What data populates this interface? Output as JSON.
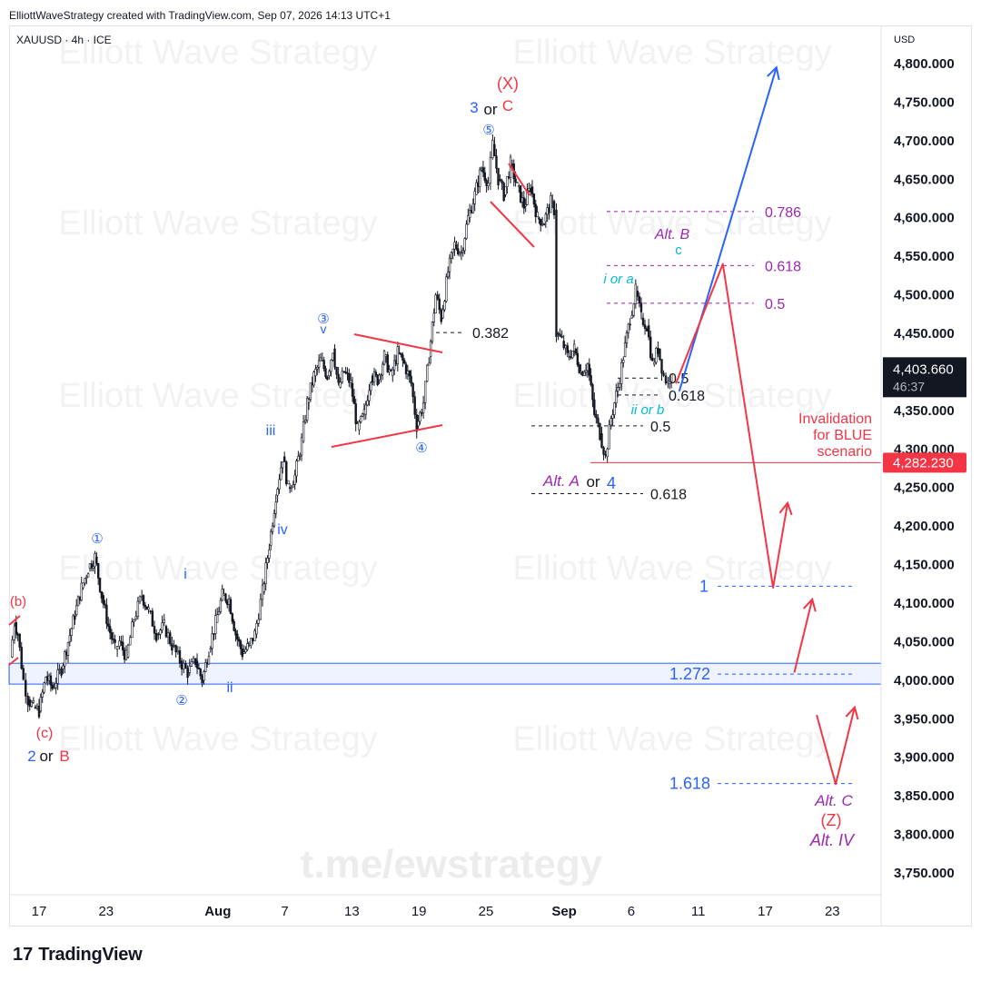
{
  "header": {
    "text": "ElliottWaveStrategy created with TradingView.com, Sep 07, 2026 14:13 UTC+1"
  },
  "symbol": {
    "text": "XAUUSD · 4h · ICE"
  },
  "currency": "USD",
  "footer": {
    "logo": "17",
    "brand": "TradingView"
  },
  "watermarks": [
    "Elliott Wave Strategy",
    "t.me/ewstrategy"
  ],
  "colors": {
    "up": "#ffffff",
    "down": "#131722",
    "blue": "#2962ff",
    "red": "#f23645",
    "purple": "#9c27b0",
    "cyan": "#00bcd4",
    "black": "#131722"
  },
  "chart_data": {
    "type": "candlestick",
    "symbol": "XAUUSD",
    "timeframe": "4h",
    "ylim": [
      3720,
      4830
    ],
    "y_ticks": [
      4800,
      4750,
      4700,
      4650,
      4600,
      4550,
      4500,
      4450,
      4400,
      4350,
      4300,
      4250,
      4200,
      4150,
      4100,
      4050,
      4000,
      3950,
      3900,
      3850,
      3800,
      3750
    ],
    "y_tick_labels": [
      "4,800.000",
      "4,750.000",
      "4,700.000",
      "4,650.000",
      "4,600.000",
      "4,550.000",
      "4,500.000",
      "4,450.000",
      "4,400.000",
      "4,350.000",
      "4,300.000",
      "4,250.000",
      "4,200.000",
      "4,150.000",
      "4,100.000",
      "4,050.000",
      "4,000.000",
      "3,950.000",
      "3,900.000",
      "3,850.000",
      "3,800.000",
      "3,750.000"
    ],
    "x_ticks": [
      {
        "day": 0,
        "label": "17",
        "bold": false
      },
      {
        "day": 6,
        "label": "23",
        "bold": false
      },
      {
        "day": 16,
        "label": "Aug",
        "bold": true
      },
      {
        "day": 22,
        "label": "7",
        "bold": false
      },
      {
        "day": 28,
        "label": "13",
        "bold": false
      },
      {
        "day": 34,
        "label": "19",
        "bold": false
      },
      {
        "day": 40,
        "label": "25",
        "bold": false
      },
      {
        "day": 47,
        "label": "Sep",
        "bold": true
      },
      {
        "day": 53,
        "label": "6",
        "bold": false
      },
      {
        "day": 59,
        "label": "11",
        "bold": false
      },
      {
        "day": 65,
        "label": "17",
        "bold": false
      },
      {
        "day": 71,
        "label": "23",
        "bold": false
      }
    ],
    "price_path": [
      [
        -2.6,
        4030
      ],
      [
        -2.2,
        4075
      ],
      [
        -1.9,
        4060
      ],
      [
        -1.4,
        4000
      ],
      [
        -1.0,
        3975
      ],
      [
        -0.5,
        3965
      ],
      [
        0,
        3960
      ],
      [
        0.6,
        4005
      ],
      [
        1.2,
        3990
      ],
      [
        2.0,
        4015
      ],
      [
        2.6,
        4050
      ],
      [
        3.2,
        4085
      ],
      [
        3.8,
        4120
      ],
      [
        4.4,
        4145
      ],
      [
        5.0,
        4160
      ],
      [
        5.6,
        4110
      ],
      [
        6.2,
        4070
      ],
      [
        6.8,
        4040
      ],
      [
        7.2,
        4050
      ],
      [
        7.8,
        4030
      ],
      [
        8.5,
        4080
      ],
      [
        9.2,
        4110
      ],
      [
        9.8,
        4090
      ],
      [
        10.5,
        4060
      ],
      [
        11.2,
        4070
      ],
      [
        11.9,
        4045
      ],
      [
        12.6,
        4025
      ],
      [
        13.3,
        4010
      ],
      [
        14.0,
        4025
      ],
      [
        14.6,
        4000
      ],
      [
        15.2,
        4040
      ],
      [
        15.8,
        4075
      ],
      [
        16.4,
        4110
      ],
      [
        17.0,
        4105
      ],
      [
        17.6,
        4060
      ],
      [
        18.2,
        4035
      ],
      [
        18.8,
        4045
      ],
      [
        19.3,
        4060
      ],
      [
        20.0,
        4115
      ],
      [
        20.6,
        4175
      ],
      [
        21.2,
        4240
      ],
      [
        21.8,
        4290
      ],
      [
        22.3,
        4250
      ],
      [
        22.9,
        4265
      ],
      [
        23.5,
        4310
      ],
      [
        24.0,
        4360
      ],
      [
        24.6,
        4395
      ],
      [
        25.2,
        4415
      ],
      [
        25.8,
        4395
      ],
      [
        26.3,
        4430
      ],
      [
        26.8,
        4380
      ],
      [
        27.3,
        4400
      ],
      [
        27.9,
        4385
      ],
      [
        28.5,
        4325
      ],
      [
        29.1,
        4345
      ],
      [
        29.7,
        4395
      ],
      [
        30.3,
        4390
      ],
      [
        30.9,
        4420
      ],
      [
        31.5,
        4395
      ],
      [
        32.1,
        4425
      ],
      [
        32.7,
        4410
      ],
      [
        33.3,
        4385
      ],
      [
        33.8,
        4330
      ],
      [
        34.4,
        4360
      ],
      [
        34.9,
        4420
      ],
      [
        35.5,
        4500
      ],
      [
        36.0,
        4470
      ],
      [
        36.6,
        4530
      ],
      [
        37.2,
        4565
      ],
      [
        37.8,
        4555
      ],
      [
        38.4,
        4600
      ],
      [
        39.0,
        4630
      ],
      [
        39.6,
        4665
      ],
      [
        40.2,
        4645
      ],
      [
        40.6,
        4695
      ],
      [
        41.1,
        4650
      ],
      [
        41.6,
        4630
      ],
      [
        42.2,
        4670
      ],
      [
        42.8,
        4640
      ],
      [
        43.4,
        4615
      ],
      [
        44.0,
        4640
      ],
      [
        44.6,
        4600
      ],
      [
        45.2,
        4595
      ],
      [
        45.8,
        4620
      ],
      [
        46.1,
        4610
      ],
      [
        46.3,
        4450
      ],
      [
        46.8,
        4440
      ],
      [
        47.3,
        4420
      ],
      [
        47.9,
        4430
      ],
      [
        48.5,
        4400
      ],
      [
        49.1,
        4410
      ],
      [
        49.7,
        4345
      ],
      [
        50.2,
        4320
      ],
      [
        50.7,
        4290
      ],
      [
        51.2,
        4340
      ],
      [
        51.8,
        4380
      ],
      [
        52.3,
        4420
      ],
      [
        52.9,
        4470
      ],
      [
        53.4,
        4505
      ],
      [
        53.9,
        4470
      ],
      [
        54.4,
        4460
      ],
      [
        54.9,
        4410
      ],
      [
        55.4,
        4430
      ],
      [
        55.9,
        4395
      ],
      [
        56.3,
        4385
      ],
      [
        56.6,
        4404
      ]
    ],
    "current_price": {
      "value": 4403.66,
      "label": "4,403.660",
      "countdown": "46:37"
    },
    "invalidation": {
      "value": 4282.23,
      "label": "4,282.230",
      "text": [
        "Invalidation",
        "for BLUE",
        "scenario"
      ]
    },
    "support_zone": [
      3995,
      4022
    ],
    "fib_levels": [
      {
        "label": "0.786",
        "value": 4608,
        "color": "purple"
      },
      {
        "label": "0.618",
        "value": 4538,
        "color": "purple"
      },
      {
        "label": "0.5",
        "value": 4489,
        "color": "purple"
      },
      {
        "label": "0.382",
        "value": 4451,
        "color": "black"
      },
      {
        "label": "0.5",
        "value": 4392,
        "color": "black"
      },
      {
        "label": "0.618",
        "value": 4370,
        "color": "black"
      },
      {
        "label": "0.5",
        "value": 4330,
        "color": "black"
      },
      {
        "label": "0.618",
        "value": 4242,
        "color": "black"
      },
      {
        "label": "1",
        "value": 4122,
        "color": "blue"
      },
      {
        "label": "1.272",
        "value": 4008,
        "color": "blue"
      },
      {
        "label": "1.618",
        "value": 3866,
        "color": "blue"
      }
    ],
    "wave_labels": [
      {
        "text": "(b)",
        "color": "red"
      },
      {
        "text": "(c)",
        "color": "red"
      },
      {
        "text": "2",
        "color": "blue"
      },
      {
        "text": "or",
        "color": "black"
      },
      {
        "text": "B",
        "color": "red"
      },
      {
        "text": "①",
        "color": "blue"
      },
      {
        "text": "②",
        "color": "blue"
      },
      {
        "text": "i",
        "color": "blue"
      },
      {
        "text": "ii",
        "color": "blue"
      },
      {
        "text": "iii",
        "color": "blue"
      },
      {
        "text": "iv",
        "color": "blue"
      },
      {
        "text": "③",
        "color": "blue"
      },
      {
        "text": "v",
        "color": "blue"
      },
      {
        "text": "④",
        "color": "blue"
      },
      {
        "text": "⑤",
        "color": "blue"
      },
      {
        "text": "3",
        "color": "blue"
      },
      {
        "text": "or",
        "color": "black"
      },
      {
        "text": "C",
        "color": "red"
      },
      {
        "text": "(X)",
        "color": "red"
      },
      {
        "text": "Alt. A",
        "color": "purple"
      },
      {
        "text": "or",
        "color": "black"
      },
      {
        "text": "4",
        "color": "blue"
      },
      {
        "text": "i or a",
        "color": "cyan"
      },
      {
        "text": "ii or b",
        "color": "cyan"
      },
      {
        "text": "Alt. B",
        "color": "purple"
      },
      {
        "text": "c",
        "color": "cyan"
      },
      {
        "text": "Alt. C",
        "color": "purple"
      },
      {
        "text": "(Z)",
        "color": "red"
      },
      {
        "text": "Alt. IV",
        "color": "purple"
      }
    ],
    "projections": {
      "blue": [
        [
          57.3,
          4375
        ],
        [
          66.0,
          4795
        ]
      ],
      "red": [
        [
          57.0,
          4385
        ],
        [
          61.2,
          4540
        ],
        [
          65.7,
          4120
        ],
        [
          67.0,
          4230
        ]
      ],
      "red2": [
        [
          67.6,
          4010
        ],
        [
          69.2,
          4105
        ]
      ],
      "red3": [
        [
          69.6,
          3955
        ],
        [
          71.3,
          3865
        ],
        [
          73.0,
          3965
        ]
      ]
    }
  }
}
